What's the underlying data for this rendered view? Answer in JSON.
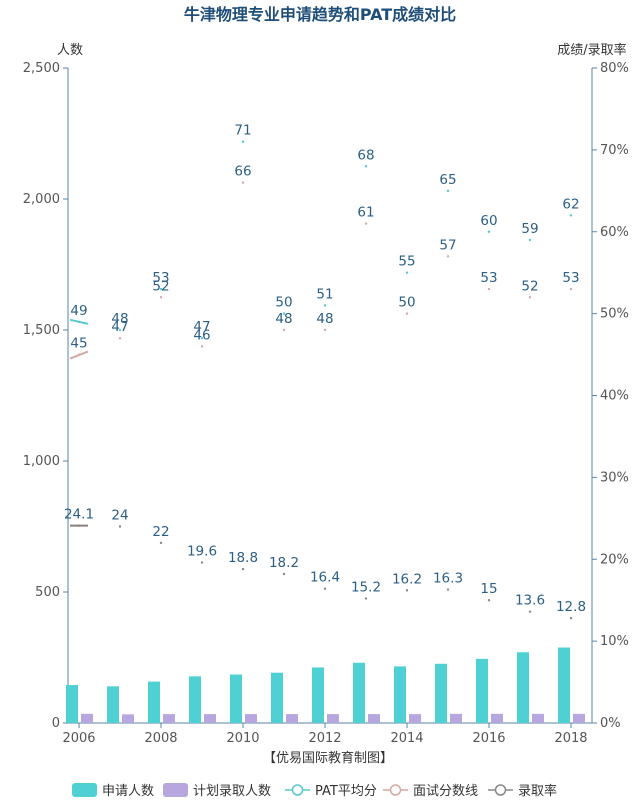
{
  "chart_data": {
    "type": "bar",
    "title": "牛津物理专业申请趋势和PAT成绩对比",
    "left_axis_label": "人数",
    "right_axis_label": "成绩/录取率",
    "left_ylim": [
      0,
      2500
    ],
    "left_ticks": [
      "0",
      "500",
      "1,000",
      "1,500",
      "2,000",
      "2,500"
    ],
    "left_tick_values": [
      0,
      500,
      1000,
      1500,
      2000,
      2500
    ],
    "right_ylim": [
      0,
      80
    ],
    "right_ticks": [
      "0%",
      "10%",
      "20%",
      "30%",
      "40%",
      "50%",
      "60%",
      "70%",
      "80%"
    ],
    "right_tick_values": [
      0,
      10,
      20,
      30,
      40,
      50,
      60,
      70,
      80
    ],
    "x": [
      2006,
      2007,
      2008,
      2009,
      2010,
      2011,
      2012,
      2013,
      2014,
      2015,
      2016,
      2017,
      2018
    ],
    "x_tick_labels": [
      "2006",
      "2008",
      "2010",
      "2012",
      "2014",
      "2016",
      "2018"
    ],
    "x_tick_values": [
      2006,
      2008,
      2010,
      2012,
      2014,
      2016,
      2018
    ],
    "source": "【优易国际教育制图】",
    "series": [
      {
        "name": "申请人数",
        "kind": "bar",
        "axis": "left",
        "color": "#4fd0d3",
        "values": [
          145,
          140,
          158,
          178,
          185,
          192,
          212,
          230,
          216,
          226,
          245,
          270,
          288
        ]
      },
      {
        "name": "计划录取人数",
        "kind": "bar",
        "axis": "left",
        "color": "#b8a6df",
        "values": [
          35,
          33,
          34,
          34,
          34,
          34,
          34,
          34,
          34,
          35,
          35,
          35,
          35
        ]
      },
      {
        "name": "PAT平均分",
        "kind": "line",
        "axis": "right",
        "color": "#56c9cf",
        "values": [
          49,
          48,
          53,
          47,
          71,
          50,
          51,
          68,
          55,
          65,
          60,
          59,
          62
        ]
      },
      {
        "name": "面试分数线",
        "kind": "line",
        "axis": "right",
        "color": "#d3aaa1",
        "values": [
          45,
          47,
          52,
          46,
          66,
          48,
          48,
          61,
          50,
          57,
          53,
          52,
          53
        ]
      },
      {
        "name": "录取率",
        "kind": "line",
        "axis": "right",
        "color": "#888888",
        "values": [
          24.1,
          24,
          22,
          19.6,
          18.8,
          18.2,
          16.4,
          15.2,
          16.2,
          16.3,
          15,
          13.6,
          12.8
        ]
      }
    ]
  }
}
